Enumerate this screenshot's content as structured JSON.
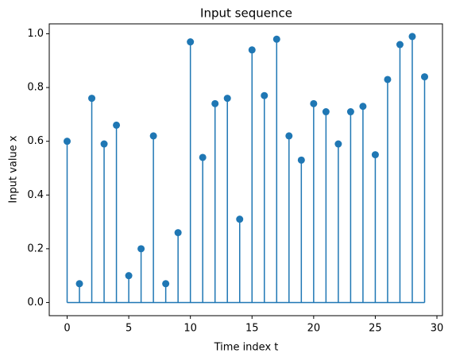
{
  "chart_data": {
    "type": "stem",
    "title": "Input sequence",
    "x_label": "Time index t",
    "y_label": "Input value x",
    "x": [
      0,
      1,
      2,
      3,
      4,
      5,
      6,
      7,
      8,
      9,
      10,
      11,
      12,
      13,
      14,
      15,
      16,
      17,
      18,
      19,
      20,
      21,
      22,
      23,
      24,
      25,
      26,
      27,
      28,
      29
    ],
    "values": [
      0.6,
      0.07,
      0.76,
      0.59,
      0.66,
      0.1,
      0.2,
      0.62,
      0.07,
      0.26,
      0.97,
      0.54,
      0.74,
      0.76,
      0.31,
      0.94,
      0.77,
      0.98,
      0.62,
      0.53,
      0.74,
      0.71,
      0.59,
      0.71,
      0.73,
      0.55,
      0.83,
      0.96,
      0.99,
      0.84
    ],
    "color": "#1f77b4",
    "xlim": [
      -1.45,
      30.45
    ],
    "xticks": [
      0,
      5,
      10,
      15,
      20,
      25,
      30
    ],
    "ylim": [
      -0.049,
      1.037
    ],
    "yticks": [
      {
        "value": 0,
        "label": "0.0"
      },
      {
        "value": 0.2,
        "label": "0.2"
      },
      {
        "value": 0.4,
        "label": "0.4"
      },
      {
        "value": 0.6,
        "label": "0.6"
      },
      {
        "value": 0.8,
        "label": "0.8"
      },
      {
        "value": 1,
        "label": "1.0"
      }
    ]
  }
}
